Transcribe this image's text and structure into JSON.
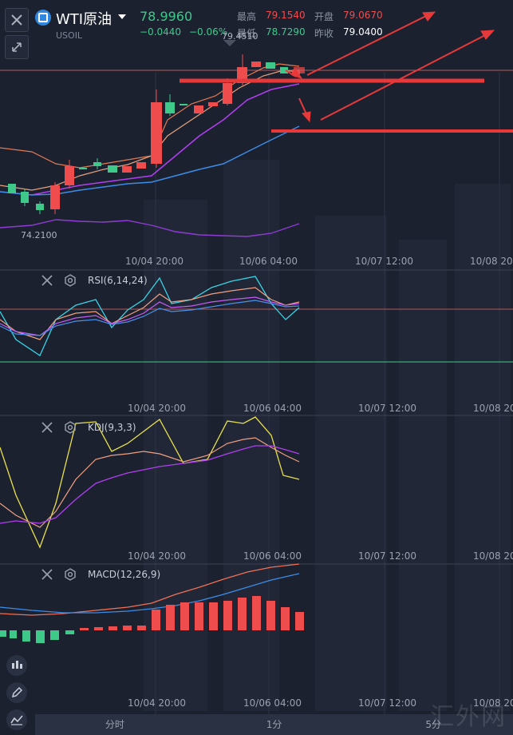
{
  "header": {
    "symbol_title": "WTI原油",
    "symbol_code": "USOIL",
    "last_price": "78.9960",
    "change": "−0.0440",
    "change_pct": "−0.06%",
    "stats": {
      "high_label": "最高",
      "high_value": "79.1540",
      "open_label": "开盘",
      "open_value": "79.0670",
      "low_label": "最低",
      "low_value": "78.7290",
      "prev_close_label": "昨收",
      "prev_close_value": "79.0400"
    }
  },
  "main_chart": {
    "high_marker": "79.4510",
    "low_marker": "74.2100",
    "time_labels": [
      "10/04 20:00",
      "10/06 04:00",
      "10/07 12:00",
      "10/08 20"
    ]
  },
  "rsi": {
    "label": "RSI(6,14,24)",
    "time_labels": [
      "10/04 20:00",
      "10/06 04:00",
      "10/07 12:00",
      "10/08 20:"
    ]
  },
  "kdj": {
    "label": "KDJ(9,3,3)",
    "time_labels": [
      "10/04 20:00",
      "10/06 04:00",
      "10/07 12:00",
      "10/08 20:"
    ]
  },
  "macd": {
    "label": "MACD(12,26,9)",
    "time_labels": [
      "10/04 20:00",
      "10/06 04:00",
      "10/07 12:00",
      "10/08 20:"
    ]
  },
  "bottom_tabs": [
    "分时",
    "1分",
    "5分"
  ],
  "watermark": "汇外网",
  "colors": {
    "up": "#ef4d4d",
    "down": "#3ec98a",
    "background": "#1c2130",
    "annotation": "#e8393a",
    "ma_blue": "#3c8ce7",
    "ma_purple": "#b13ff0",
    "rsi_cyan": "#35d4e6",
    "kdj_yellow": "#e8e14a"
  },
  "icons": [
    "close-icon",
    "collapse-icon",
    "symbol-logo-icon",
    "dropdown-icon",
    "settings-icon",
    "candlestick-tool-icon",
    "draw-tool-icon",
    "indicator-tool-icon"
  ]
}
